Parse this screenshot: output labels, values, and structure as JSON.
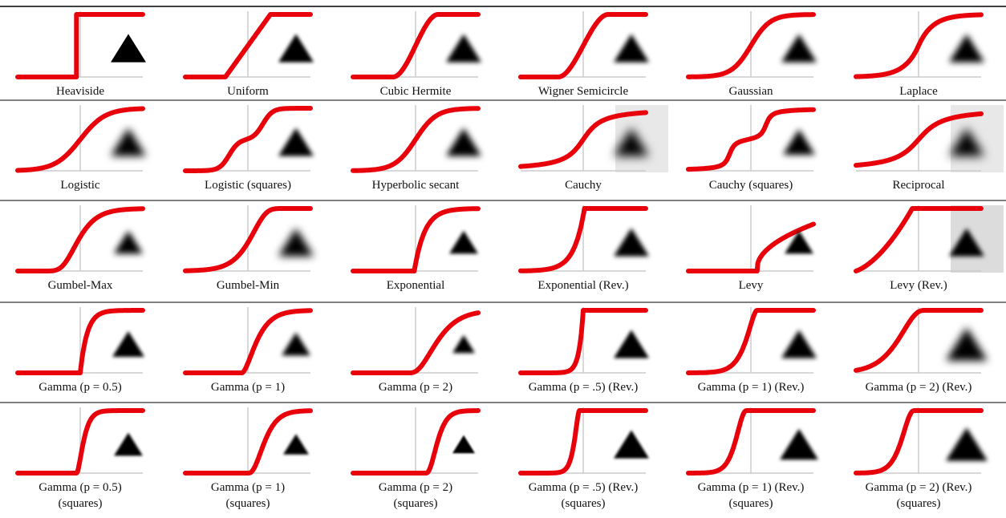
{
  "rows": [
    {
      "panels": [
        {
          "label": "Heaviside"
        },
        {
          "label": "Uniform"
        },
        {
          "label": "Cubic Hermite"
        },
        {
          "label": "Wigner Semicircle"
        },
        {
          "label": "Gaussian"
        },
        {
          "label": "Laplace"
        }
      ]
    },
    {
      "panels": [
        {
          "label": "Logistic"
        },
        {
          "label": "Logistic (squares)"
        },
        {
          "label": "Hyperbolic secant"
        },
        {
          "label": "Cauchy"
        },
        {
          "label": "Cauchy (squares)"
        },
        {
          "label": "Reciprocal"
        }
      ]
    },
    {
      "panels": [
        {
          "label": "Gumbel-Max"
        },
        {
          "label": "Gumbel-Min"
        },
        {
          "label": "Exponential"
        },
        {
          "label": "Exponential (Rev.)"
        },
        {
          "label": "Levy"
        },
        {
          "label": "Levy (Rev.)"
        }
      ]
    },
    {
      "panels": [
        {
          "label": "Gamma (p = 0.5)"
        },
        {
          "label": "Gamma (p = 1)"
        },
        {
          "label": "Gamma (p = 2)"
        },
        {
          "label": "Gamma (p = .5) (Rev.)"
        },
        {
          "label": "Gamma (p = 1) (Rev.)"
        },
        {
          "label": "Gamma (p = 2) (Rev.)"
        }
      ]
    },
    {
      "panels": [
        {
          "label": "Gamma (p = 0.5)",
          "note": "(squares)"
        },
        {
          "label": "Gamma (p = 1)",
          "note": "(squares)"
        },
        {
          "label": "Gamma (p = 2)",
          "note": "(squares)"
        },
        {
          "label": "Gamma (p = .5) (Rev.)",
          "note": "(squares)"
        },
        {
          "label": "Gamma (p = 1) (Rev.)",
          "note": "(squares)"
        },
        {
          "label": "Gamma (p = 2) (Rev.)",
          "note": "(squares)"
        }
      ]
    }
  ]
}
